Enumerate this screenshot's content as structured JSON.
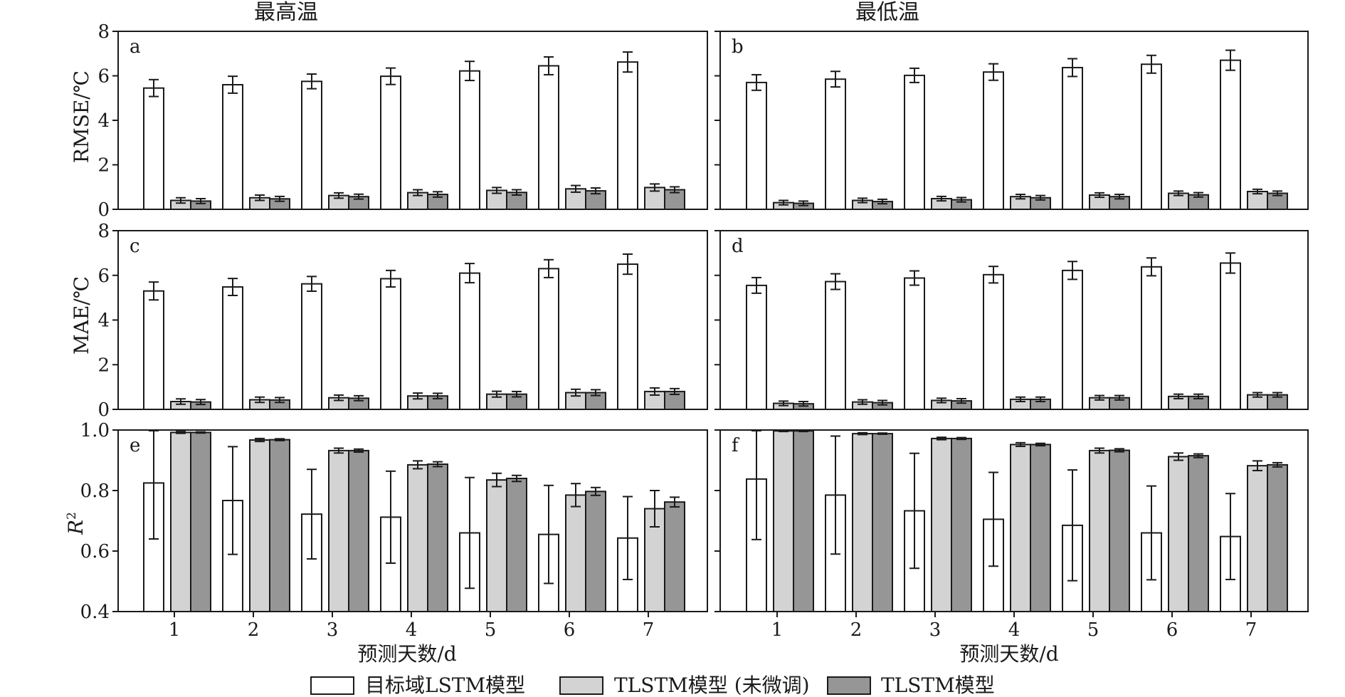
{
  "column_titles": [
    "最高温",
    "最低温"
  ],
  "xlabel": "预测天数/d",
  "legend": [
    {
      "label": "目标域LSTM模型",
      "color": "#ffffff"
    },
    {
      "label": "TLSTM模型 (未微调)",
      "color": "#d3d3d3"
    },
    {
      "label": "TLSTM模型",
      "color": "#969696"
    }
  ],
  "row_labels": {
    "rmse": "RMSE/℃",
    "mae": "MAE/℃",
    "r2_main": "R",
    "r2_sup": "2"
  },
  "chart_data": [
    {
      "type": "bar",
      "panel": "a",
      "row": "rmse",
      "col": 0,
      "categories": [
        "1",
        "2",
        "3",
        "4",
        "5",
        "6",
        "7"
      ],
      "ylim": [
        0,
        8
      ],
      "yticks": [
        0,
        2,
        4,
        6,
        8
      ],
      "ytick_labels": [
        "0",
        "2",
        "4",
        "6",
        "8"
      ],
      "series": [
        {
          "values": [
            5.45,
            5.6,
            5.75,
            5.98,
            6.22,
            6.45,
            6.62
          ],
          "err": [
            0.38,
            0.38,
            0.33,
            0.37,
            0.43,
            0.4,
            0.45
          ]
        },
        {
          "values": [
            0.4,
            0.52,
            0.62,
            0.75,
            0.85,
            0.92,
            0.98
          ],
          "err": [
            0.12,
            0.12,
            0.12,
            0.13,
            0.13,
            0.15,
            0.16
          ]
        },
        {
          "values": [
            0.37,
            0.47,
            0.57,
            0.67,
            0.76,
            0.83,
            0.88
          ],
          "err": [
            0.11,
            0.11,
            0.11,
            0.12,
            0.12,
            0.13,
            0.13
          ]
        }
      ]
    },
    {
      "type": "bar",
      "panel": "b",
      "row": "rmse",
      "col": 1,
      "categories": [
        "1",
        "2",
        "3",
        "4",
        "5",
        "6",
        "7"
      ],
      "ylim": [
        0,
        8
      ],
      "yticks": [
        0,
        2,
        4,
        6,
        8
      ],
      "ytick_labels": [
        "",
        "",
        "",
        "",
        ""
      ],
      "series": [
        {
          "values": [
            5.7,
            5.85,
            6.02,
            6.17,
            6.37,
            6.52,
            6.7
          ],
          "err": [
            0.35,
            0.35,
            0.32,
            0.37,
            0.4,
            0.4,
            0.45
          ]
        },
        {
          "values": [
            0.3,
            0.4,
            0.48,
            0.57,
            0.64,
            0.72,
            0.8
          ],
          "err": [
            0.1,
            0.1,
            0.1,
            0.1,
            0.1,
            0.1,
            0.1
          ]
        },
        {
          "values": [
            0.27,
            0.35,
            0.43,
            0.52,
            0.57,
            0.65,
            0.72
          ],
          "err": [
            0.1,
            0.1,
            0.1,
            0.1,
            0.1,
            0.1,
            0.1
          ]
        }
      ]
    },
    {
      "type": "bar",
      "panel": "c",
      "row": "mae",
      "col": 0,
      "categories": [
        "1",
        "2",
        "3",
        "4",
        "5",
        "6",
        "7"
      ],
      "ylim": [
        0,
        8
      ],
      "yticks": [
        0,
        2,
        4,
        6,
        8
      ],
      "ytick_labels": [
        "0",
        "2",
        "4",
        "6",
        "8"
      ],
      "series": [
        {
          "values": [
            5.3,
            5.48,
            5.62,
            5.85,
            6.1,
            6.3,
            6.5
          ],
          "err": [
            0.4,
            0.38,
            0.33,
            0.37,
            0.43,
            0.4,
            0.45
          ]
        },
        {
          "values": [
            0.35,
            0.43,
            0.52,
            0.6,
            0.68,
            0.75,
            0.8
          ],
          "err": [
            0.12,
            0.12,
            0.12,
            0.13,
            0.13,
            0.15,
            0.16
          ]
        },
        {
          "values": [
            0.33,
            0.42,
            0.5,
            0.6,
            0.68,
            0.75,
            0.8
          ],
          "err": [
            0.11,
            0.11,
            0.11,
            0.12,
            0.12,
            0.13,
            0.13
          ]
        }
      ]
    },
    {
      "type": "bar",
      "panel": "d",
      "row": "mae",
      "col": 1,
      "categories": [
        "1",
        "2",
        "3",
        "4",
        "5",
        "6",
        "7"
      ],
      "ylim": [
        0,
        8
      ],
      "yticks": [
        0,
        2,
        4,
        6,
        8
      ],
      "ytick_labels": [
        "",
        "",
        "",
        "",
        ""
      ],
      "series": [
        {
          "values": [
            5.55,
            5.72,
            5.88,
            6.03,
            6.22,
            6.38,
            6.55
          ],
          "err": [
            0.35,
            0.35,
            0.32,
            0.37,
            0.4,
            0.4,
            0.45
          ]
        },
        {
          "values": [
            0.27,
            0.33,
            0.4,
            0.45,
            0.52,
            0.58,
            0.65
          ],
          "err": [
            0.1,
            0.1,
            0.1,
            0.1,
            0.1,
            0.1,
            0.1
          ]
        },
        {
          "values": [
            0.25,
            0.3,
            0.38,
            0.45,
            0.52,
            0.58,
            0.65
          ],
          "err": [
            0.1,
            0.1,
            0.1,
            0.1,
            0.1,
            0.1,
            0.1
          ]
        }
      ]
    },
    {
      "type": "bar",
      "panel": "e",
      "row": "r2",
      "col": 0,
      "categories": [
        "1",
        "2",
        "3",
        "4",
        "5",
        "6",
        "7"
      ],
      "ylim": [
        0.4,
        1.0
      ],
      "yticks": [
        0.4,
        0.6,
        0.8,
        1.0
      ],
      "ytick_labels": [
        "0.4",
        "0.6",
        "0.8",
        "1.0"
      ],
      "series": [
        {
          "values": [
            0.825,
            0.767,
            0.722,
            0.712,
            0.66,
            0.655,
            0.643
          ],
          "err": [
            0.185,
            0.178,
            0.148,
            0.152,
            0.183,
            0.162,
            0.137
          ]
        },
        {
          "values": [
            0.992,
            0.967,
            0.932,
            0.885,
            0.835,
            0.785,
            0.74
          ],
          "err": [
            0.003,
            0.005,
            0.008,
            0.013,
            0.022,
            0.038,
            0.06
          ]
        },
        {
          "values": [
            0.992,
            0.968,
            0.932,
            0.887,
            0.84,
            0.797,
            0.762
          ],
          "err": [
            0.002,
            0.003,
            0.005,
            0.008,
            0.01,
            0.013,
            0.016
          ]
        }
      ]
    },
    {
      "type": "bar",
      "panel": "f",
      "row": "r2",
      "col": 1,
      "categories": [
        "1",
        "2",
        "3",
        "4",
        "5",
        "6",
        "7"
      ],
      "ylim": [
        0.4,
        1.0
      ],
      "yticks": [
        0.4,
        0.6,
        0.8,
        1.0
      ],
      "ytick_labels": [
        "",
        "",
        "",
        ""
      ],
      "series": [
        {
          "values": [
            0.838,
            0.785,
            0.733,
            0.705,
            0.685,
            0.66,
            0.648
          ],
          "err": [
            0.2,
            0.195,
            0.19,
            0.155,
            0.183,
            0.155,
            0.142
          ]
        },
        {
          "values": [
            0.997,
            0.988,
            0.972,
            0.952,
            0.932,
            0.912,
            0.882
          ],
          "err": [
            0.002,
            0.003,
            0.004,
            0.006,
            0.008,
            0.012,
            0.016
          ]
        },
        {
          "values": [
            0.997,
            0.988,
            0.972,
            0.952,
            0.933,
            0.915,
            0.885
          ],
          "err": [
            0.002,
            0.002,
            0.003,
            0.004,
            0.005,
            0.006,
            0.007
          ]
        }
      ]
    }
  ]
}
